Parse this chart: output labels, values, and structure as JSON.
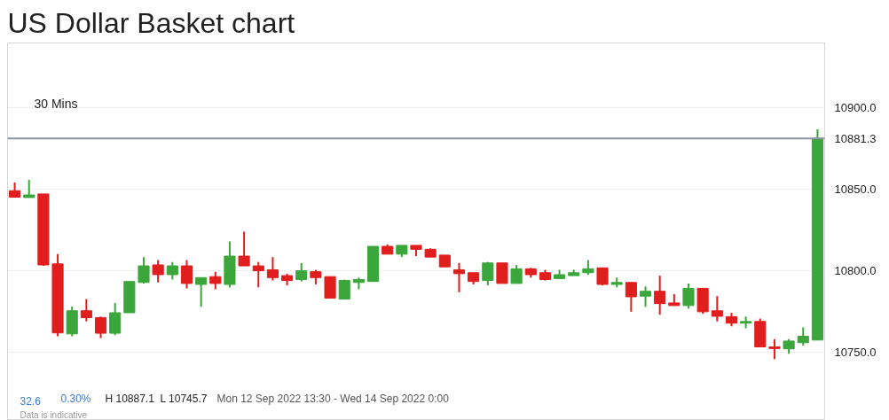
{
  "chart_data": {
    "type": "candlestick",
    "title": "US Dollar Basket chart",
    "categories": [
      null,
      null,
      null,
      null,
      null,
      null,
      null,
      null,
      null,
      null,
      null,
      null,
      null,
      null,
      null,
      null,
      null,
      null,
      null,
      null,
      null,
      null,
      null,
      null,
      null,
      null,
      null,
      null,
      null,
      null,
      null,
      null,
      null,
      null,
      null,
      null,
      null,
      null,
      null,
      null,
      null,
      null,
      null,
      null,
      null,
      null,
      null,
      null,
      null,
      null,
      null,
      null,
      null,
      null,
      null,
      null,
      null
    ],
    "ohlc": [
      [
        10849.2,
        10854.2,
        10845.2,
        10845.2
      ],
      [
        10845.0,
        10855.8,
        10845.0,
        10846.6
      ],
      [
        10847.2,
        10847.2,
        10803.0,
        10803.6
      ],
      [
        10804.2,
        10810.2,
        10759.8,
        10761.8
      ],
      [
        10761.2,
        10778.0,
        10759.8,
        10775.4
      ],
      [
        10775.4,
        10782.6,
        10768.8,
        10771.2
      ],
      [
        10771.2,
        10771.8,
        10758.6,
        10761.6
      ],
      [
        10761.6,
        10780.2,
        10760.4,
        10774.2
      ],
      [
        10774.2,
        10793.4,
        10774.2,
        10793.4
      ],
      [
        10792.8,
        10808.4,
        10792.2,
        10803.0
      ],
      [
        10803.6,
        10806.6,
        10792.8,
        10797.6
      ],
      [
        10797.6,
        10805.4,
        10794.6,
        10803.0
      ],
      [
        10803.0,
        10806.6,
        10789.2,
        10792.2
      ],
      [
        10791.6,
        10795.8,
        10777.8,
        10795.8
      ],
      [
        10796.4,
        10799.4,
        10788.6,
        10792.2
      ],
      [
        10791.6,
        10818.0,
        10789.8,
        10809.0
      ],
      [
        10809.0,
        10824.0,
        10803.0,
        10803.0
      ],
      [
        10803.0,
        10805.4,
        10789.8,
        10800.0
      ],
      [
        10800.6,
        10808.4,
        10794.0,
        10795.8
      ],
      [
        10797.0,
        10798.2,
        10791.0,
        10794.0
      ],
      [
        10794.6,
        10804.8,
        10793.4,
        10800.0
      ],
      [
        10799.4,
        10800.6,
        10791.6,
        10795.8
      ],
      [
        10796.4,
        10796.4,
        10783.2,
        10783.2
      ],
      [
        10782.6,
        10794.6,
        10782.6,
        10794.0
      ],
      [
        10792.8,
        10795.8,
        10788.6,
        10794.6
      ],
      [
        10793.4,
        10815.0,
        10793.4,
        10815.0
      ],
      [
        10815.0,
        10816.2,
        10810.2,
        10810.2
      ],
      [
        10810.2,
        10815.6,
        10808.4,
        10815.6
      ],
      [
        10815.6,
        10815.6,
        10809.0,
        10813.2
      ],
      [
        10813.2,
        10813.8,
        10808.4,
        10808.4
      ],
      [
        10809.6,
        10809.6,
        10802.4,
        10802.4
      ],
      [
        10800.6,
        10804.8,
        10786.8,
        10798.2
      ],
      [
        10798.8,
        10798.8,
        10791.6,
        10793.4
      ],
      [
        10794.0,
        10805.4,
        10791.0,
        10804.8
      ],
      [
        10804.8,
        10804.8,
        10792.2,
        10792.2
      ],
      [
        10792.2,
        10803.6,
        10792.2,
        10801.2
      ],
      [
        10801.2,
        10801.8,
        10795.8,
        10797.6
      ],
      [
        10798.8,
        10800.6,
        10794.0,
        10794.6
      ],
      [
        10795.2,
        10800.6,
        10795.2,
        10797.6
      ],
      [
        10797.0,
        10800.6,
        10797.0,
        10798.8
      ],
      [
        10798.8,
        10806.6,
        10797.6,
        10801.2
      ],
      [
        10801.8,
        10801.8,
        10791.0,
        10791.6
      ],
      [
        10791.6,
        10795.8,
        10789.8,
        10792.8
      ],
      [
        10792.8,
        10792.8,
        10774.8,
        10784.0
      ],
      [
        10784.4,
        10790.4,
        10777.8,
        10787.4
      ],
      [
        10787.4,
        10797.0,
        10773.0,
        10779.8
      ],
      [
        10780.2,
        10785.6,
        10778.6,
        10778.6
      ],
      [
        10778.6,
        10792.2,
        10776.8,
        10789.2
      ],
      [
        10789.2,
        10789.2,
        10773.6,
        10774.8
      ],
      [
        10775.4,
        10784.4,
        10768.8,
        10772.0
      ],
      [
        10771.8,
        10774.2,
        10765.8,
        10767.8
      ],
      [
        10767.8,
        10771.8,
        10764.6,
        10768.8
      ],
      [
        10768.8,
        10770.6,
        10753.2,
        10753.2
      ],
      [
        10753.2,
        10758.0,
        10745.7,
        10752.2
      ],
      [
        10752.0,
        10758.0,
        10749.0,
        10756.8
      ],
      [
        10755.8,
        10765.2,
        10754.0,
        10759.8
      ],
      [
        10757.4,
        10887.1,
        10757.4,
        10881.3
      ]
    ],
    "colors": [
      "#e01e1e",
      "#3ba63b",
      "#e01e1e",
      "#e01e1e",
      "#3ba63b",
      "#e01e1e",
      "#e01e1e",
      "#3ba63b",
      "#3ba63b",
      "#3ba63b",
      "#e01e1e",
      "#3ba63b",
      "#e01e1e",
      "#3ba63b",
      "#e01e1e",
      "#3ba63b",
      "#e01e1e",
      "#e01e1e",
      "#e01e1e",
      "#e01e1e",
      "#3ba63b",
      "#e01e1e",
      "#e01e1e",
      "#3ba63b",
      "#3ba63b",
      "#3ba63b",
      "#e01e1e",
      "#3ba63b",
      "#e01e1e",
      "#e01e1e",
      "#e01e1e",
      "#e01e1e",
      "#e01e1e",
      "#3ba63b",
      "#e01e1e",
      "#3ba63b",
      "#e01e1e",
      "#e01e1e",
      "#3ba63b",
      "#3ba63b",
      "#3ba63b",
      "#e01e1e",
      "#3ba63b",
      "#e01e1e",
      "#3ba63b",
      "#e01e1e",
      "#e01e1e",
      "#3ba63b",
      "#e01e1e",
      "#e01e1e",
      "#e01e1e",
      "#3ba63b",
      "#e01e1e",
      "#e01e1e",
      "#3ba63b",
      "#3ba63b",
      "#3ba63b"
    ],
    "ylim": [
      10708,
      10940
    ],
    "yticks": [
      {
        "value": 10750,
        "label": "10750.0"
      },
      {
        "value": 10800,
        "label": "10800.0"
      },
      {
        "value": 10850,
        "label": "10850.0"
      },
      {
        "value": 10900,
        "label": "10900.0"
      }
    ],
    "grid": "y",
    "ref_lines": [
      {
        "axis": "y",
        "value": 10881.3,
        "label": "10881.3",
        "color": "#8a94a6"
      }
    ],
    "annotations": [
      "30 Mins",
      "32.6",
      "0.30%",
      "H 10887.1",
      "L 10745.7",
      "Mon 12 Sep 2022 13:30 - Wed 14 Sep 2022 0:00",
      "Data is indicative"
    ]
  }
}
